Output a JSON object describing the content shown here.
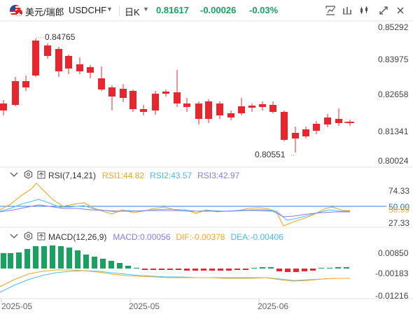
{
  "header": {
    "name": "美元/瑞郎",
    "code": "USDCHF",
    "timeframe": "日K",
    "price": "0.81617",
    "change": "-0.00026",
    "change_pct": "-0.03%"
  },
  "main_axis": [
    "0.85292",
    "0.83975",
    "0.82658",
    "0.81341",
    "0.80024"
  ],
  "annotations": {
    "high": "0.84765",
    "low": "0.80551"
  },
  "rsi": {
    "title": "RSI(7,14,21)",
    "rsi1": "RSI1:44.82",
    "rsi2": "RSI2:43.57",
    "rsi3": "RSI3:42.97",
    "axis": [
      "74.33",
      "50.00",
      "50.99",
      "27.33"
    ]
  },
  "macd": {
    "title": "MACD(12,26,9)",
    "macd": "MACD:0.00056",
    "dif": "DIF:-0.00378",
    "dea": "DEA:-0.00406",
    "axis": [
      "0.00850",
      "-0.00183",
      "-0.01216"
    ]
  },
  "xaxis": [
    "2025-05",
    "2025-05",
    "2025-06"
  ],
  "colors": {
    "up": "#19a15f",
    "down": "#e8262d",
    "rsi1": "#f5a623",
    "rsi2": "#4fc3f7",
    "rsi3": "#8c7ae6",
    "dif": "#f5a623",
    "dea": "#4fc3f7"
  },
  "icons": [
    "crosshair-icon",
    "indicator-icon",
    "candle-type-icon",
    "expand-icon",
    "close-icon"
  ]
}
